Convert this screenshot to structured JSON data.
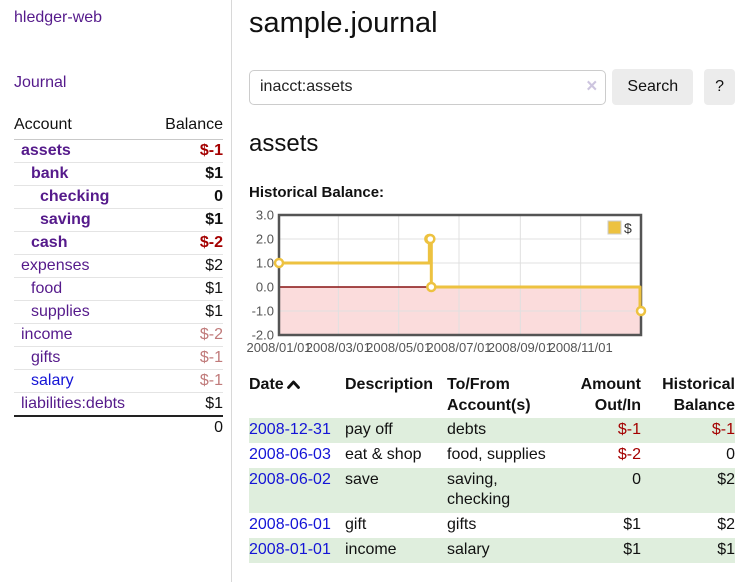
{
  "colors": {
    "link_purple": "#551a8b",
    "link_blue": "#1414d6",
    "negative_strong": "#a40000",
    "negative_soft": "#c07a7a",
    "row_stripe_green": "#dfeedd",
    "chart_series_gold": "#edc240",
    "chart_negative_fill": "#fbdcdc",
    "chart_zero_line": "#871111",
    "chart_border": "#545454",
    "chart_grid": "#e0e0e0"
  },
  "sidebar": {
    "brand": "hledger-web",
    "nav_journal": "Journal",
    "accounts_table": {
      "headers": [
        "Account",
        "Balance"
      ],
      "rows": [
        {
          "account": "assets",
          "balance": "$-1",
          "level": 1,
          "bold": true,
          "link_color": "purple",
          "balance_color": "neg-strong"
        },
        {
          "account": "bank",
          "balance": "$1",
          "level": 2,
          "bold": true,
          "link_color": "purple",
          "balance_color": "normal"
        },
        {
          "account": "checking",
          "balance": "0",
          "level": 3,
          "bold": true,
          "link_color": "purple",
          "balance_color": "normal"
        },
        {
          "account": "saving",
          "balance": "$1",
          "level": 3,
          "bold": true,
          "link_color": "purple",
          "balance_color": "normal"
        },
        {
          "account": "cash",
          "balance": "$-2",
          "level": 2,
          "bold": true,
          "link_color": "purple",
          "balance_color": "neg-strong"
        },
        {
          "account": "expenses",
          "balance": "$2",
          "level": 1,
          "bold": false,
          "link_color": "purple",
          "balance_color": "normal"
        },
        {
          "account": "food",
          "balance": "$1",
          "level": 2,
          "bold": false,
          "link_color": "purple",
          "balance_color": "normal"
        },
        {
          "account": "supplies",
          "balance": "$1",
          "level": 2,
          "bold": false,
          "link_color": "purple",
          "balance_color": "normal"
        },
        {
          "account": "income",
          "balance": "$-2",
          "level": 1,
          "bold": false,
          "link_color": "purple",
          "balance_color": "neg-soft"
        },
        {
          "account": "gifts",
          "balance": "$-1",
          "level": 2,
          "bold": false,
          "link_color": "purple",
          "balance_color": "neg-soft"
        },
        {
          "account": "salary",
          "balance": "$-1",
          "level": 2,
          "bold": false,
          "link_color": "blue",
          "balance_color": "neg-soft"
        },
        {
          "account": "liabilities:debts",
          "balance": "$1",
          "level": 1,
          "bold": false,
          "link_color": "purple",
          "balance_color": "normal"
        }
      ],
      "total": "0"
    }
  },
  "main": {
    "title": "sample.journal",
    "search": {
      "value": "inacct:assets",
      "clear_icon": "×",
      "button_label": "Search",
      "help_label": "?"
    },
    "account_heading": "assets",
    "chart_heading": "Historical Balance:",
    "register_table": {
      "headers": [
        "Date",
        "Description",
        "To/From Account(s)",
        "Amount Out/In",
        "Historical Balance"
      ],
      "rows": [
        {
          "date": "2008-12-31",
          "description": "pay off",
          "to_from": "debts",
          "amount": "$-1",
          "amount_negative": true,
          "historical": "$-1",
          "historical_negative": true
        },
        {
          "date": "2008-06-03",
          "description": "eat & shop",
          "to_from": "food, supplies",
          "amount": "$-2",
          "amount_negative": true,
          "historical": "0",
          "historical_negative": false
        },
        {
          "date": "2008-06-02",
          "description": "save",
          "to_from": "saving,\nchecking",
          "amount": "0",
          "amount_negative": false,
          "historical": "$2",
          "historical_negative": false
        },
        {
          "date": "2008-06-01",
          "description": "gift",
          "to_from": "gifts",
          "amount": "$1",
          "amount_negative": false,
          "historical": "$2",
          "historical_negative": false
        },
        {
          "date": "2008-01-01",
          "description": "income",
          "to_from": "salary",
          "amount": "$1",
          "amount_negative": false,
          "historical": "$1",
          "historical_negative": false
        }
      ]
    }
  },
  "chart_data": {
    "type": "line",
    "step": true,
    "title": "Historical Balance:",
    "series": [
      {
        "name": "$",
        "color": "#edc240",
        "points": [
          [
            "2008-01-01",
            1
          ],
          [
            "2008-06-01",
            2
          ],
          [
            "2008-06-02",
            2
          ],
          [
            "2008-06-03",
            0
          ],
          [
            "2008-12-31",
            -1
          ]
        ]
      }
    ],
    "xlim": [
      "2008-01-01",
      "2009-01-01"
    ],
    "ylim": [
      -2,
      3
    ],
    "x_ticks": [
      "2008/01/01",
      "2008/03/01",
      "2008/05/01",
      "2008/07/01",
      "2008/09/01",
      "2008/11/01"
    ],
    "y_ticks": [
      3.0,
      2.0,
      1.0,
      0.0,
      -1.0,
      -2.0
    ],
    "grid": true,
    "legend_position": "top-right",
    "legend_label": "$",
    "negative_fill": "#fbdcdc",
    "zero_line_color": "#871111"
  }
}
